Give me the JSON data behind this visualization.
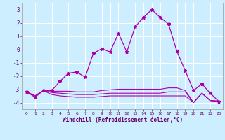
{
  "xlabel": "Windchill (Refroidissement éolien,°C)",
  "bg_color": "#cceeff",
  "grid_color": "#ffffff",
  "line_color": "#aa00aa",
  "xlim": [
    -0.5,
    23.5
  ],
  "ylim": [
    -4.5,
    3.5
  ],
  "yticks": [
    -4,
    -3,
    -2,
    -1,
    0,
    1,
    2,
    3
  ],
  "xticks": [
    0,
    1,
    2,
    3,
    4,
    5,
    6,
    7,
    8,
    9,
    10,
    11,
    12,
    13,
    14,
    15,
    16,
    17,
    18,
    19,
    20,
    21,
    22,
    23
  ],
  "line1_x": [
    0,
    1,
    2,
    3,
    4,
    5,
    6,
    7,
    8,
    9,
    10,
    11,
    12,
    13,
    14,
    15,
    16,
    17,
    18,
    19,
    20,
    21,
    22,
    23
  ],
  "line1_y": [
    -3.2,
    -3.6,
    -3.1,
    -3.1,
    -2.4,
    -1.8,
    -1.7,
    -2.1,
    -0.3,
    0.05,
    -0.2,
    1.2,
    -0.2,
    1.7,
    2.4,
    3.0,
    2.4,
    1.9,
    -0.15,
    -1.6,
    -3.1,
    -2.6,
    -3.3,
    -3.9
  ],
  "line2_x": [
    0,
    1,
    2,
    3,
    4,
    5,
    6,
    7,
    8,
    9,
    10,
    11,
    12,
    13,
    14,
    15,
    16,
    17,
    18,
    19,
    20,
    21,
    22,
    23
  ],
  "line2_y": [
    -3.2,
    -3.5,
    -3.1,
    -3.15,
    -3.15,
    -3.15,
    -3.2,
    -3.2,
    -3.2,
    -3.1,
    -3.05,
    -3.0,
    -3.0,
    -3.0,
    -3.0,
    -3.0,
    -3.0,
    -2.9,
    -2.9,
    -3.1,
    -4.0,
    -3.3,
    -3.85,
    -3.9
  ],
  "line3_x": [
    0,
    1,
    2,
    3,
    4,
    5,
    6,
    7,
    8,
    9,
    10,
    11,
    12,
    13,
    14,
    15,
    16,
    17,
    18,
    19,
    20,
    21,
    22,
    23
  ],
  "line3_y": [
    -3.2,
    -3.5,
    -3.1,
    -3.25,
    -3.3,
    -3.35,
    -3.4,
    -3.4,
    -3.4,
    -3.35,
    -3.3,
    -3.3,
    -3.3,
    -3.3,
    -3.3,
    -3.3,
    -3.3,
    -3.2,
    -3.2,
    -3.2,
    -4.0,
    -3.3,
    -3.85,
    -3.9
  ],
  "line4_x": [
    0,
    1,
    2,
    3,
    4,
    5,
    6,
    7,
    8,
    9,
    10,
    11,
    12,
    13,
    14,
    15,
    16,
    17,
    18,
    19,
    20,
    21,
    22,
    23
  ],
  "line4_y": [
    -3.2,
    -3.5,
    -3.1,
    -3.4,
    -3.5,
    -3.55,
    -3.6,
    -3.6,
    -3.6,
    -3.55,
    -3.5,
    -3.5,
    -3.5,
    -3.5,
    -3.5,
    -3.5,
    -3.5,
    -3.5,
    -3.5,
    -3.5,
    -4.0,
    -3.3,
    -3.85,
    -3.9
  ]
}
